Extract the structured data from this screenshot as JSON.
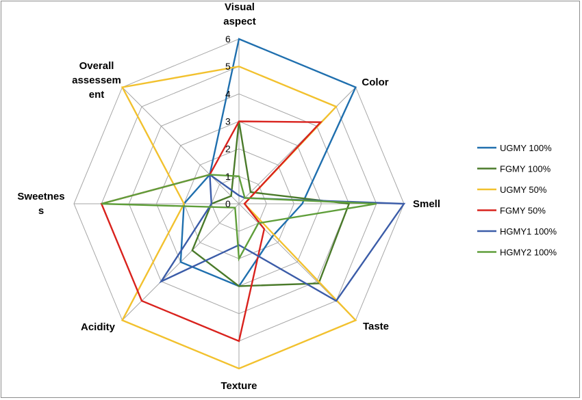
{
  "chart_data": {
    "type": "radar",
    "axes": [
      [
        "Visual",
        "aspect"
      ],
      [
        "Color"
      ],
      [
        "Smell"
      ],
      [
        "Taste"
      ],
      [
        "Texture"
      ],
      [
        "Acidity"
      ],
      [
        "Sweetnes",
        "s"
      ],
      [
        "Overall",
        "assessem",
        "ent"
      ]
    ],
    "r_ticks": [
      "0",
      "1",
      "2",
      "3",
      "4",
      "5",
      "6"
    ],
    "rlim": [
      0,
      6
    ],
    "grid": true,
    "legend_position": "right",
    "series": [
      {
        "name": "UGMY 100%",
        "color": "#1f6fae",
        "values": [
          6,
          6,
          2.3,
          1.7,
          3,
          3,
          2,
          1.5
        ]
      },
      {
        "name": "FGMY 100%",
        "color": "#4a7a2a",
        "values": [
          3,
          0.6,
          4,
          4.1,
          3,
          2.4,
          1,
          0.4
        ]
      },
      {
        "name": "UGMY 50%",
        "color": "#f2c12e",
        "values": [
          5,
          5,
          0.2,
          6,
          6,
          6,
          2,
          6
        ]
      },
      {
        "name": "FGMY 50%",
        "color": "#d9221d",
        "values": [
          3,
          4.2,
          0.2,
          1.3,
          5,
          5,
          5,
          1.5
        ]
      },
      {
        "name": "HGMY1 100%",
        "color": "#3b5ca8",
        "values": [
          0.3,
          0.3,
          6,
          5,
          1.5,
          4,
          1,
          1.5
        ]
      },
      {
        "name": "HGMY2 100%",
        "color": "#5f9e3a",
        "values": [
          1,
          0.3,
          5,
          1,
          2,
          0.2,
          5,
          1.5
        ]
      }
    ]
  }
}
